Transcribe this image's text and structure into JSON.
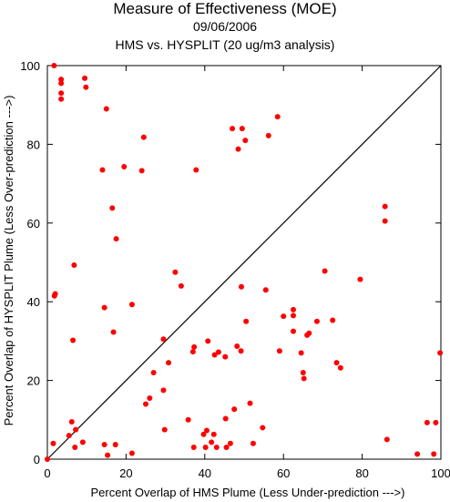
{
  "chart_data": {
    "type": "scatter",
    "title": "Measure of Effectiveness (MOE)",
    "subtitle": "09/06/2006",
    "subtitle2": "HMS vs. HYSPLIT  (20 ug/m3 analysis)",
    "xlabel": "Percent Overlap of HMS Plume (Less Under-prediction --->)",
    "ylabel": "Percent Overlap of HYSPLIT Plume (Less Over-prediction --->)",
    "xlim": [
      0,
      100
    ],
    "ylim": [
      0,
      100
    ],
    "xticks": [
      0,
      20,
      40,
      60,
      80,
      100
    ],
    "yticks": [
      0,
      20,
      40,
      60,
      80,
      100
    ],
    "reference_line": {
      "from": [
        0,
        0
      ],
      "to": [
        100,
        100
      ]
    },
    "point_color": "#ff0000",
    "grid": false,
    "points": [
      [
        0,
        0
      ],
      [
        1.7,
        100
      ],
      [
        3.5,
        96.5
      ],
      [
        3.5,
        95.5
      ],
      [
        3.5,
        93
      ],
      [
        3.5,
        91.5
      ],
      [
        9.5,
        96.8
      ],
      [
        9.8,
        94.5
      ],
      [
        15,
        89
      ],
      [
        2,
        42
      ],
      [
        1.8,
        41.5
      ],
      [
        6.8,
        49.3
      ],
      [
        6.5,
        30.2
      ],
      [
        6.2,
        9.5
      ],
      [
        7.2,
        7.5
      ],
      [
        5.5,
        6
      ],
      [
        1.5,
        4
      ],
      [
        7,
        3
      ],
      [
        9,
        4.3
      ],
      [
        14,
        73.5
      ],
      [
        19.5,
        74.3
      ],
      [
        24,
        73.3
      ],
      [
        24.5,
        81.8
      ],
      [
        16.5,
        63.8
      ],
      [
        17.5,
        56
      ],
      [
        14.5,
        38.5
      ],
      [
        16.8,
        32.3
      ],
      [
        21.5,
        39.3
      ],
      [
        14.5,
        3.7
      ],
      [
        17.3,
        3.7
      ],
      [
        15.3,
        1
      ],
      [
        21.5,
        1.5
      ],
      [
        25,
        14
      ],
      [
        26,
        15.5
      ],
      [
        27,
        22
      ],
      [
        29.5,
        30.5
      ],
      [
        29.5,
        17.5
      ],
      [
        29.8,
        7.5
      ],
      [
        30.8,
        24.5
      ],
      [
        32.5,
        47.5
      ],
      [
        34,
        44
      ],
      [
        37.8,
        73.5
      ],
      [
        35.8,
        10
      ],
      [
        37,
        27.3
      ],
      [
        37.3,
        28.5
      ],
      [
        37.2,
        3
      ],
      [
        39.7,
        6.3
      ],
      [
        40.5,
        7.3
      ],
      [
        40.8,
        30
      ],
      [
        40.2,
        3
      ],
      [
        41.7,
        4.3
      ],
      [
        42.3,
        6.3
      ],
      [
        42.5,
        26.5
      ],
      [
        43.5,
        27.2
      ],
      [
        43,
        3
      ],
      [
        45.2,
        26
      ],
      [
        45.3,
        10.3
      ],
      [
        45.5,
        3
      ],
      [
        46.5,
        4
      ],
      [
        47,
        84
      ],
      [
        47.5,
        12.7
      ],
      [
        48.2,
        28.7
      ],
      [
        48.5,
        78.8
      ],
      [
        49.5,
        84
      ],
      [
        49.2,
        27.5
      ],
      [
        49.3,
        43.8
      ],
      [
        50.3,
        81
      ],
      [
        50.5,
        35
      ],
      [
        51.5,
        14.2
      ],
      [
        52.3,
        4
      ],
      [
        58.5,
        87
      ],
      [
        54.7,
        8
      ],
      [
        55.5,
        43
      ],
      [
        56.2,
        82.2
      ],
      [
        59,
        27.5
      ],
      [
        60,
        36.3
      ],
      [
        62.5,
        36.5
      ],
      [
        62.5,
        38
      ],
      [
        62.5,
        32.5
      ],
      [
        64.5,
        27
      ],
      [
        65,
        22
      ],
      [
        65.2,
        20.5
      ],
      [
        66,
        31.5
      ],
      [
        66.5,
        32
      ],
      [
        68.5,
        35
      ],
      [
        70.5,
        47.8
      ],
      [
        72.5,
        35.3
      ],
      [
        73.5,
        24.5
      ],
      [
        74.5,
        23.2
      ],
      [
        79.5,
        45.7
      ],
      [
        85.8,
        64.2
      ],
      [
        85.8,
        60.5
      ],
      [
        86.3,
        5
      ],
      [
        94,
        1.3
      ],
      [
        96.5,
        9.3
      ],
      [
        98.2,
        1.3
      ],
      [
        98.7,
        9.3
      ],
      [
        99.8,
        27
      ]
    ]
  }
}
